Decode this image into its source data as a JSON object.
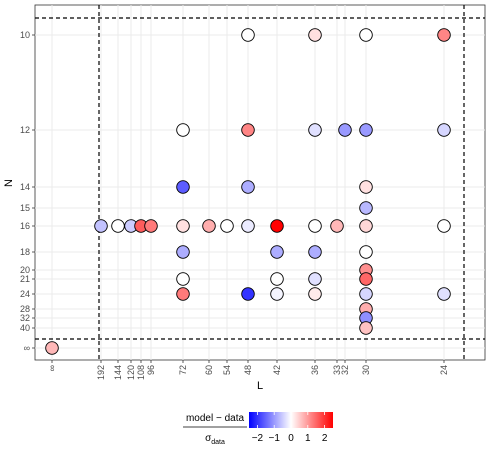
{
  "chart_data": {
    "type": "scatter",
    "xlabel": "L",
    "ylabel": "N",
    "x_ticks": [
      "∞",
      "192",
      "144",
      "120",
      "108",
      "96",
      "72",
      "60",
      "54",
      "48",
      "42",
      "36",
      "33",
      "32",
      "30",
      "24"
    ],
    "y_ticks": [
      "10",
      "12",
      "14",
      "15",
      "16",
      "18",
      "20",
      "21",
      "24",
      "28",
      "32",
      "40",
      "∞"
    ],
    "reference_lines": {
      "x": [
        "192",
        "24"
      ],
      "y": [
        "10",
        "40"
      ],
      "style": "dashed"
    },
    "color_scale": {
      "label_numerator": "model − data",
      "label_denominator": "σ",
      "label_denominator_sub": "data",
      "ticks": [
        -2,
        -1,
        0,
        1,
        2
      ],
      "range": [
        -2.5,
        2.5
      ],
      "low_color": "#0000ff",
      "mid_color": "#ffffff",
      "high_color": "#ff0000"
    },
    "points": [
      {
        "L": "48",
        "N": "10",
        "value": 0.0
      },
      {
        "L": "36",
        "N": "10",
        "value": 0.3
      },
      {
        "L": "30",
        "N": "10",
        "value": 0.0
      },
      {
        "L": "24",
        "N": "10",
        "value": 1.2
      },
      {
        "L": "72",
        "N": "12",
        "value": 0.0
      },
      {
        "L": "48",
        "N": "12",
        "value": 1.2
      },
      {
        "L": "36",
        "N": "12",
        "value": -0.3
      },
      {
        "L": "32",
        "N": "12",
        "value": -1.0
      },
      {
        "L": "30",
        "N": "12",
        "value": -1.0
      },
      {
        "L": "24",
        "N": "12",
        "value": -0.4
      },
      {
        "L": "72",
        "N": "14",
        "value": -1.6
      },
      {
        "L": "48",
        "N": "14",
        "value": -0.8
      },
      {
        "L": "30",
        "N": "14",
        "value": 0.3
      },
      {
        "L": "30",
        "N": "15",
        "value": -0.7
      },
      {
        "L": "192",
        "N": "16",
        "value": -0.6
      },
      {
        "L": "144",
        "N": "16",
        "value": 0.0
      },
      {
        "L": "120",
        "N": "16",
        "value": -0.5
      },
      {
        "L": "108",
        "N": "16",
        "value": 1.6
      },
      {
        "L": "96",
        "N": "16",
        "value": 1.3
      },
      {
        "L": "72",
        "N": "16",
        "value": 0.3
      },
      {
        "L": "60",
        "N": "16",
        "value": 0.8
      },
      {
        "L": "54",
        "N": "16",
        "value": 0.0
      },
      {
        "L": "48",
        "N": "16",
        "value": -0.2
      },
      {
        "L": "42",
        "N": "16",
        "value": 2.5
      },
      {
        "L": "36",
        "N": "16",
        "value": 0.0
      },
      {
        "L": "33",
        "N": "16",
        "value": 0.7
      },
      {
        "L": "30",
        "N": "16",
        "value": 0.4
      },
      {
        "L": "24",
        "N": "16",
        "value": 0.0
      },
      {
        "L": "72",
        "N": "18",
        "value": -0.8
      },
      {
        "L": "42",
        "N": "18",
        "value": -0.8
      },
      {
        "L": "36",
        "N": "18",
        "value": -0.8
      },
      {
        "L": "30",
        "N": "18",
        "value": 0.0
      },
      {
        "L": "30",
        "N": "20",
        "value": 1.1
      },
      {
        "L": "72",
        "N": "21",
        "value": 0.0
      },
      {
        "L": "42",
        "N": "21",
        "value": 0.0
      },
      {
        "L": "36",
        "N": "21",
        "value": -0.3
      },
      {
        "L": "30",
        "N": "21",
        "value": 1.5
      },
      {
        "L": "72",
        "N": "24",
        "value": 1.3
      },
      {
        "L": "48",
        "N": "24",
        "value": -2.0
      },
      {
        "L": "42",
        "N": "24",
        "value": -0.1
      },
      {
        "L": "36",
        "N": "24",
        "value": 0.2
      },
      {
        "L": "30",
        "N": "24",
        "value": -0.4
      },
      {
        "L": "24",
        "N": "24",
        "value": -0.3
      },
      {
        "L": "30",
        "N": "28",
        "value": 0.8
      },
      {
        "L": "30",
        "N": "32",
        "value": -1.1
      },
      {
        "L": "30",
        "N": "40",
        "value": 0.6
      },
      {
        "L": "∞",
        "N": "∞",
        "value": 0.7
      }
    ]
  }
}
